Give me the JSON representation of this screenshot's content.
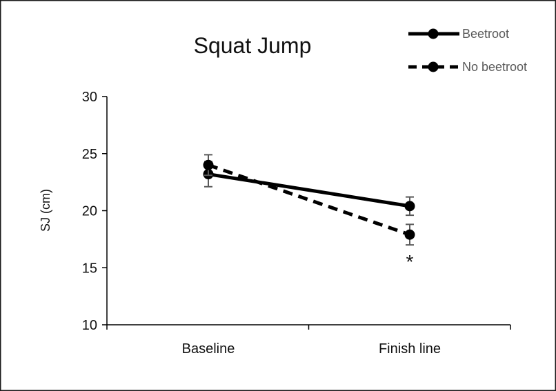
{
  "chart_data": {
    "type": "line",
    "title": "Squat Jump",
    "ylabel": "SJ (cm)",
    "xlabel": "",
    "categories": [
      "Baseline",
      "Finish line"
    ],
    "ylim": [
      10,
      30
    ],
    "yticks": [
      "10",
      "15",
      "20",
      "25",
      "30"
    ],
    "grid": false,
    "legend_position": "top-right",
    "series": [
      {
        "name": "Beetroot",
        "values": [
          23.2,
          20.4
        ],
        "errors": [
          1.1,
          0.8
        ],
        "line_style": "solid",
        "color": "#000000"
      },
      {
        "name": "No beetroot",
        "values": [
          24.0,
          17.9
        ],
        "errors": [
          0.9,
          0.9
        ],
        "line_style": "dashed",
        "color": "#000000"
      }
    ],
    "annotations": [
      {
        "text": "*",
        "category": "Finish line",
        "series": "No beetroot"
      }
    ]
  }
}
